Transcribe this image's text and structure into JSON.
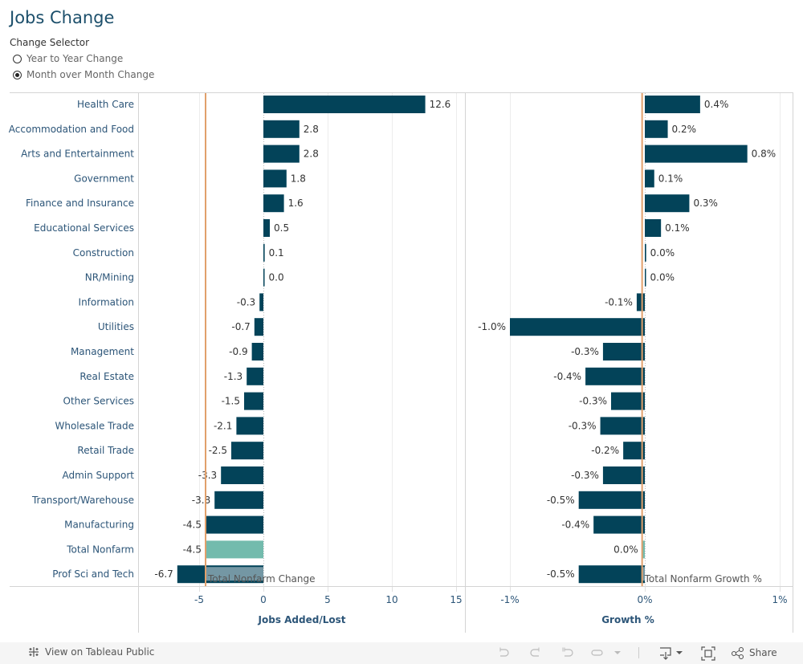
{
  "header": {
    "title": "Jobs Change",
    "selector_label": "Change Selector",
    "options": [
      {
        "label": "Year to Year Change",
        "selected": false
      },
      {
        "label": "Month over Month Change",
        "selected": true
      }
    ]
  },
  "colors": {
    "bar": "#034359",
    "total_bar": "#73bbad",
    "reference_line": "#e1a06b",
    "axis_text": "#2c5578"
  },
  "chart_data": [
    {
      "type": "bar",
      "orientation": "horizontal",
      "title": "",
      "xlabel": "Jobs Added/Lost",
      "ylabel": "",
      "xlim": [
        -10,
        16
      ],
      "xticks": [
        -5,
        0,
        5,
        10,
        15
      ],
      "xtick_labels": [
        "-5",
        "0",
        "5",
        "10",
        "15"
      ],
      "categories": [
        "Health Care",
        "Accommodation and Food",
        "Arts and Entertainment",
        "Government",
        "Finance and Insurance",
        "Educational Services",
        "Construction",
        "NR/Mining",
        "Information",
        "Utilities",
        "Management",
        "Real Estate",
        "Other Services",
        "Wholesale Trade",
        "Retail Trade",
        "Admin Support",
        "Transport/Warehouse",
        "Manufacturing",
        "Total Nonfarm",
        "Prof Sci and Tech"
      ],
      "values": [
        12.6,
        2.8,
        2.8,
        1.8,
        1.6,
        0.5,
        0.1,
        0.0,
        -0.3,
        -0.7,
        -0.9,
        -1.3,
        -1.5,
        -2.1,
        -2.5,
        -3.3,
        -3.8,
        -4.5,
        -4.5,
        -6.7
      ],
      "labels": [
        "12.6",
        "2.8",
        "2.8",
        "1.8",
        "1.6",
        "0.5",
        "0.1",
        "0.0",
        "-0.3",
        "-0.7",
        "-0.9",
        "-1.3",
        "-1.5",
        "-2.1",
        "-2.5",
        "-3.3",
        "-3.8",
        "-4.5",
        "-4.5",
        "-6.7"
      ],
      "highlight_category": "Total Nonfarm",
      "reference_line": {
        "value": -4.5,
        "label": "Total Nonfarm Change"
      },
      "grid": true
    },
    {
      "type": "bar",
      "orientation": "horizontal",
      "title": "",
      "xlabel": "Growth %",
      "ylabel": "",
      "xlim": [
        -1.0,
        1.0
      ],
      "xticks": [
        -1,
        0,
        1
      ],
      "xtick_labels": [
        "-1%",
        "0%",
        "1%"
      ],
      "categories": [
        "Health Care",
        "Accommodation and Food",
        "Arts and Entertainment",
        "Government",
        "Finance and Insurance",
        "Educational Services",
        "Construction",
        "NR/Mining",
        "Information",
        "Utilities",
        "Management",
        "Real Estate",
        "Other Services",
        "Wholesale Trade",
        "Retail Trade",
        "Admin Support",
        "Transport/Warehouse",
        "Manufacturing",
        "Total Nonfarm",
        "Prof Sci and Tech"
      ],
      "values": [
        0.41,
        0.17,
        0.76,
        0.07,
        0.33,
        0.12,
        0.01,
        0.0,
        -0.06,
        -1.0,
        -0.31,
        -0.44,
        -0.25,
        -0.33,
        -0.16,
        -0.31,
        -0.49,
        -0.38,
        -0.02,
        -0.49
      ],
      "labels": [
        "0.4%",
        "0.2%",
        "0.8%",
        "0.1%",
        "0.3%",
        "0.1%",
        "0.0%",
        "0.0%",
        "-0.1%",
        "-1.0%",
        "-0.3%",
        "-0.4%",
        "-0.3%",
        "-0.3%",
        "-0.2%",
        "-0.3%",
        "-0.5%",
        "-0.4%",
        "0.0%",
        "-0.5%"
      ],
      "highlight_category": "Total Nonfarm",
      "reference_line": {
        "value": -0.02,
        "label": "Total Nonfarm Growth %"
      },
      "grid": true
    }
  ],
  "footer": {
    "tableau_link": "View on Tableau Public",
    "share_label": "Share",
    "icons": [
      "undo-icon",
      "redo-icon",
      "revert-icon",
      "refresh-icon",
      "download-icon",
      "fullscreen-icon",
      "share-icon"
    ]
  }
}
